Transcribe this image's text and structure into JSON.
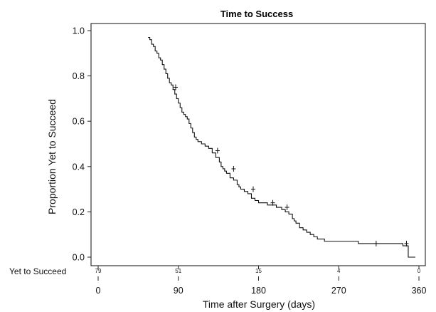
{
  "chart_data": {
    "type": "line",
    "title": "Time to Success",
    "xlabel": "Time after Surgery (days)",
    "ylabel": "Proportion Yet to Succeed",
    "xlim": [
      0,
      360
    ],
    "ylim": [
      0,
      1
    ],
    "xticks": [
      "0",
      "90",
      "180",
      "270",
      "360"
    ],
    "yticks": [
      "0.0",
      "0.2",
      "0.4",
      "0.6",
      "0.8",
      "1.0"
    ],
    "grid": false,
    "series": [
      {
        "step_x": [
          56,
          58,
          60,
          62,
          64,
          66,
          68,
          70,
          72,
          74,
          76,
          78,
          80,
          82,
          84,
          86,
          88,
          90,
          92,
          94,
          96,
          98,
          100,
          102,
          104,
          106,
          108,
          110,
          112,
          116,
          120,
          124,
          128,
          132,
          136,
          138,
          140,
          142,
          144,
          148,
          152,
          156,
          158,
          160,
          164,
          168,
          172,
          176,
          180,
          184,
          190,
          196,
          200,
          206,
          210,
          214,
          218,
          220,
          222,
          226,
          230,
          234,
          238,
          242,
          246,
          254,
          270,
          292,
          310,
          342,
          348
        ],
        "step_y": [
          0.97,
          0.96,
          0.94,
          0.93,
          0.91,
          0.9,
          0.88,
          0.87,
          0.85,
          0.83,
          0.81,
          0.79,
          0.77,
          0.76,
          0.74,
          0.72,
          0.7,
          0.68,
          0.66,
          0.64,
          0.63,
          0.62,
          0.61,
          0.59,
          0.57,
          0.55,
          0.53,
          0.52,
          0.51,
          0.5,
          0.49,
          0.48,
          0.46,
          0.44,
          0.42,
          0.4,
          0.39,
          0.38,
          0.37,
          0.35,
          0.34,
          0.32,
          0.31,
          0.3,
          0.29,
          0.28,
          0.26,
          0.25,
          0.24,
          0.24,
          0.23,
          0.23,
          0.22,
          0.21,
          0.2,
          0.19,
          0.17,
          0.16,
          0.15,
          0.13,
          0.12,
          0.11,
          0.1,
          0.09,
          0.08,
          0.07,
          0.07,
          0.06,
          0.06,
          0.05,
          0.0
        ],
        "end_x": 356,
        "censored": [
          {
            "x": 87,
            "y": 0.75
          },
          {
            "x": 134,
            "y": 0.47
          },
          {
            "x": 152,
            "y": 0.39
          },
          {
            "x": 174,
            "y": 0.3
          },
          {
            "x": 196,
            "y": 0.24
          },
          {
            "x": 212,
            "y": 0.22
          },
          {
            "x": 312,
            "y": 0.06
          },
          {
            "x": 346,
            "y": 0.06
          }
        ]
      }
    ],
    "risk_table": {
      "label": "Yet to Succeed",
      "times": [
        0,
        90,
        180,
        270,
        360
      ],
      "counts": [
        "79",
        "51",
        "15",
        "4",
        "0"
      ]
    }
  }
}
